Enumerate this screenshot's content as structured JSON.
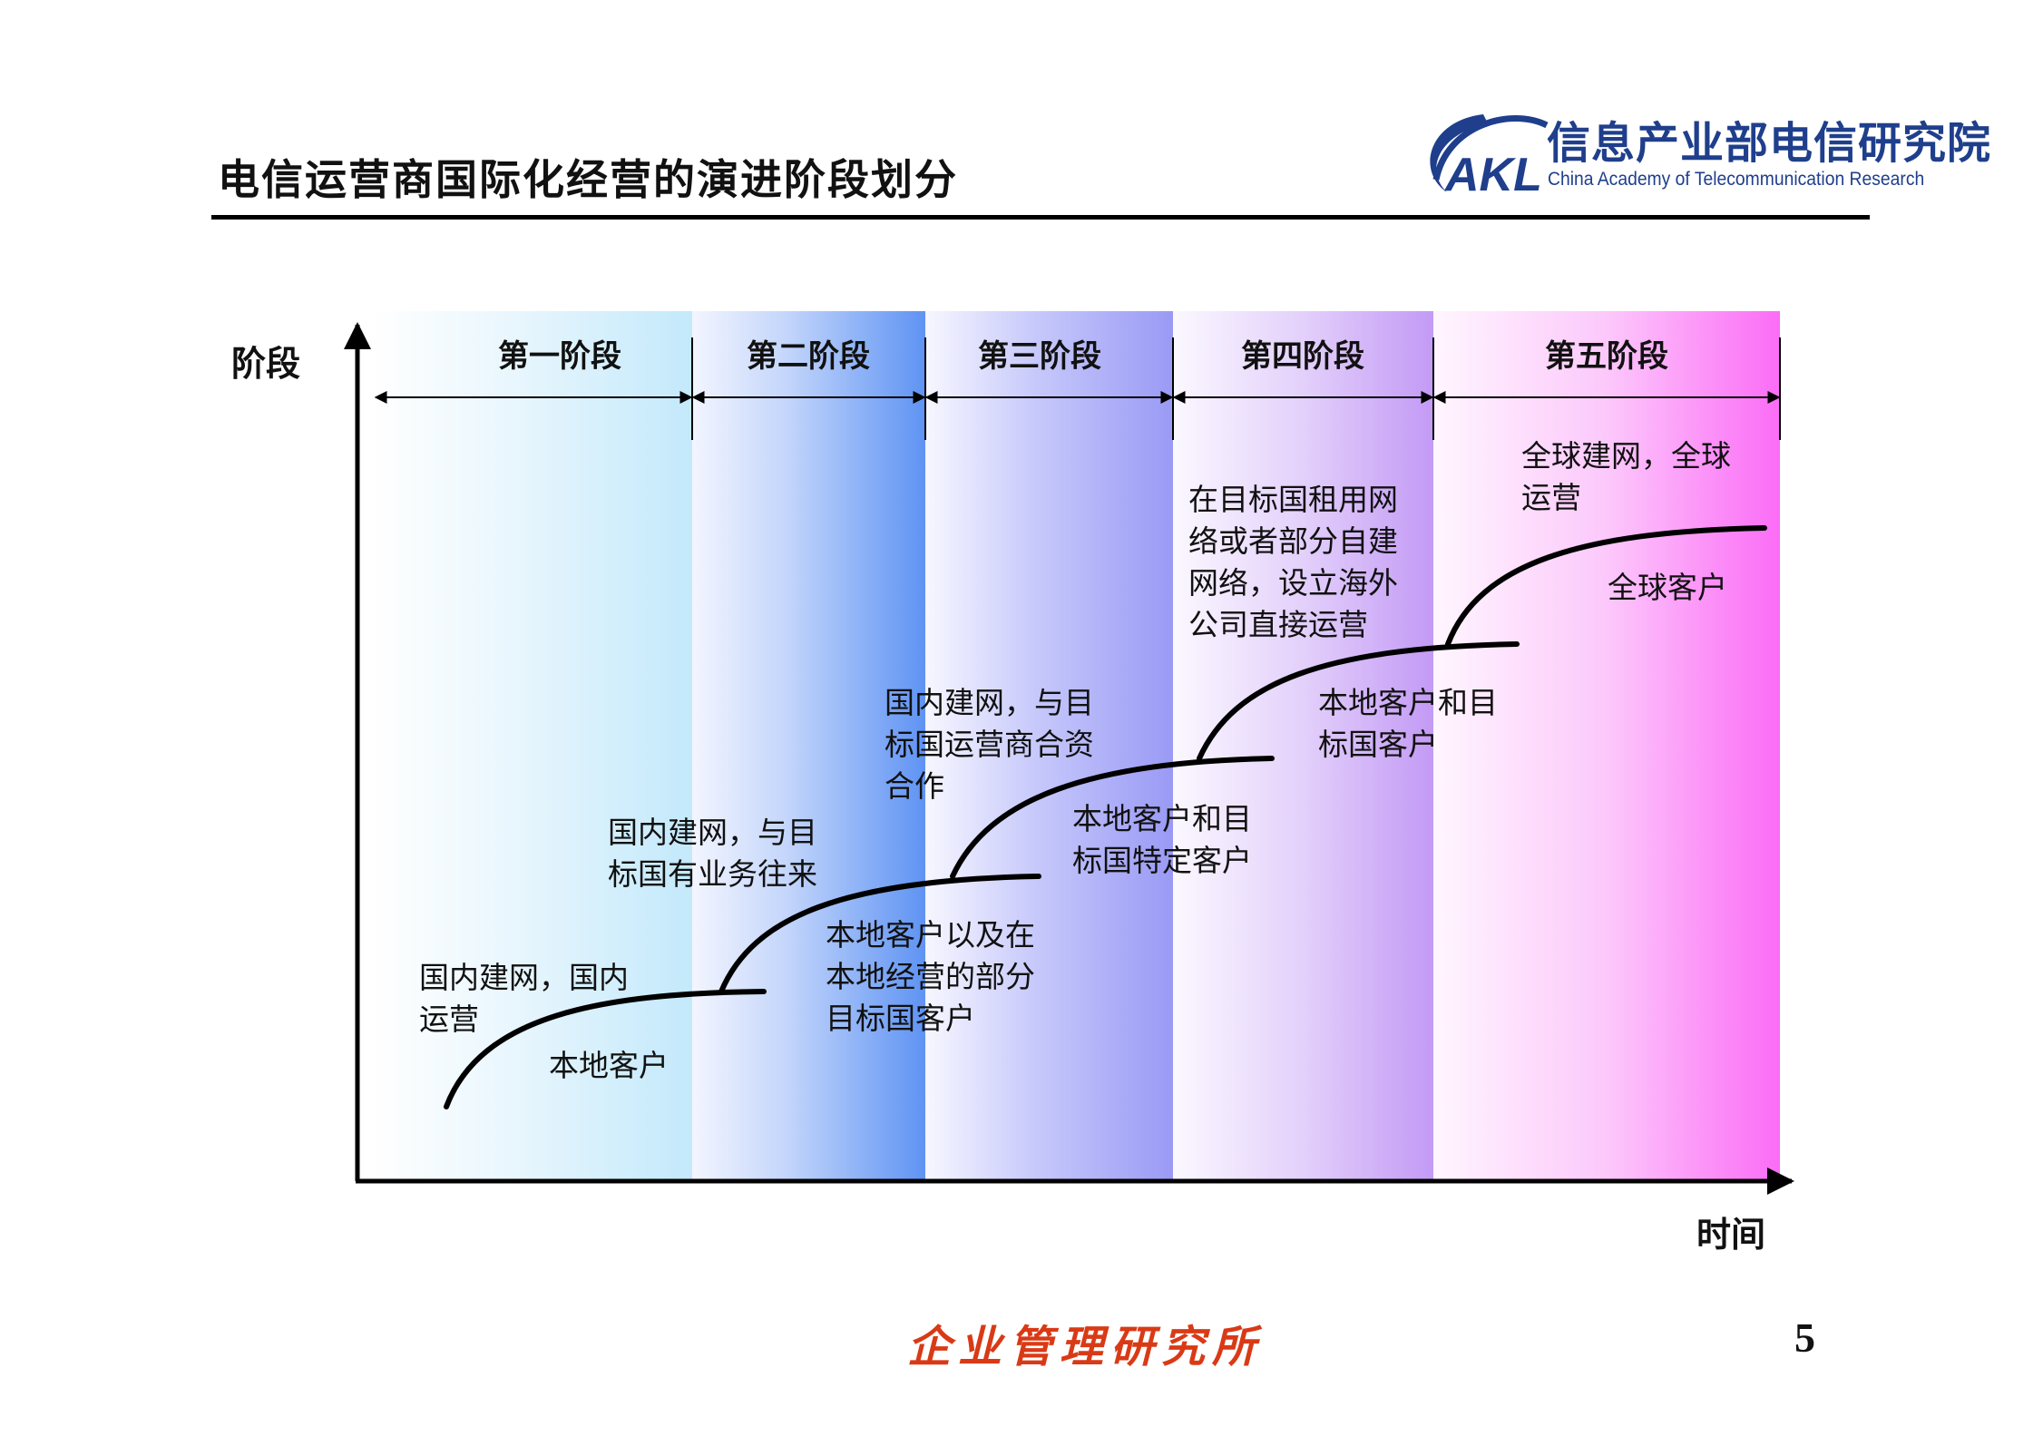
{
  "slide": {
    "title": "电信运营商国际化经营的演进阶段划分",
    "page_number": "5",
    "footer_org": "企业管理研究所"
  },
  "logo": {
    "name_cn": "信息产业部电信研究院",
    "name_en": "China Academy of Telecommunication Research",
    "mark_text": "AKL",
    "color": "#1f3f8c"
  },
  "axes": {
    "y_label": "阶段",
    "x_label": "时间"
  },
  "stages": [
    {
      "label": "第一阶段"
    },
    {
      "label": "第二阶段"
    },
    {
      "label": "第三阶段"
    },
    {
      "label": "第四阶段"
    },
    {
      "label": "第五阶段"
    }
  ],
  "steps": [
    {
      "mode": "国内建网，国内\n运营",
      "customers": "本地客户"
    },
    {
      "mode": "国内建网，与目\n标国有业务往来",
      "customers": "本地客户以及在\n本地经营的部分\n目标国客户"
    },
    {
      "mode": "国内建网，与目\n标国运营商合资\n合作",
      "customers": "本地客户和目\n标国特定客户"
    },
    {
      "mode": "在目标国租用网\n络或者部分自建\n网络，设立海外\n公司直接运营",
      "customers": "本地客户和目\n标国客户"
    },
    {
      "mode": "全球建网，全球\n运营",
      "customers": "全球客户"
    }
  ],
  "colors": {
    "footer": "#d93a16",
    "stage_1": "#c3e9fb",
    "stage_2": "#5f93f3",
    "stage_3": "#9a9af5",
    "stage_4": "#c39af5",
    "stage_5": "#fb6cf6"
  }
}
